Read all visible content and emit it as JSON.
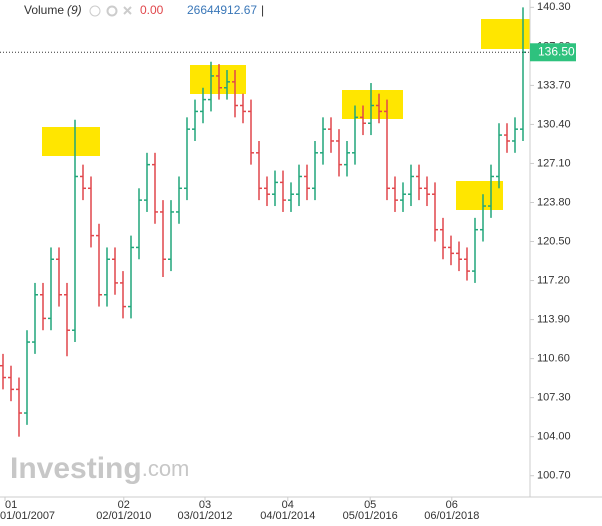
{
  "chart_data": {
    "type": "ohlc",
    "legend": {
      "name": "Volume",
      "period": "(9)",
      "change": "0.00",
      "volume": "26644912.67",
      "separator": "|"
    },
    "watermark": {
      "brand": "Investing",
      "suffix": ".com"
    },
    "up_color": "#21a67a",
    "down_color": "#e0464b",
    "open": [
      110,
      109,
      108,
      106,
      112,
      116,
      114,
      119,
      116,
      113,
      126,
      125,
      121,
      116,
      119,
      117,
      115,
      120,
      124,
      127,
      123,
      119,
      123,
      125,
      130,
      131.5,
      132.5,
      134.5,
      133.5,
      134,
      132,
      131.5,
      128,
      125,
      124.5,
      125.5,
      124,
      124.5,
      126,
      125,
      128,
      130,
      129,
      127,
      128,
      131,
      130.5,
      132,
      131.5,
      125,
      124,
      124.5,
      126,
      125,
      124.5,
      121.5,
      120,
      119.5,
      119,
      118,
      121.5,
      123.5,
      126,
      129.5,
      129,
      130
    ],
    "high": [
      111,
      110,
      109,
      113,
      117,
      117,
      120,
      120,
      117,
      130.8,
      127,
      126,
      122,
      120,
      120,
      118,
      121,
      125,
      128,
      128,
      124,
      124,
      126,
      131,
      132.5,
      133.5,
      135.7,
      135.5,
      135,
      135,
      133,
      132.5,
      129,
      126,
      126.5,
      126.5,
      125.5,
      127,
      127,
      129,
      131,
      131,
      130,
      129,
      132,
      132,
      133.9,
      133,
      132.5,
      126,
      125.5,
      127,
      127,
      126,
      125.5,
      122.5,
      121,
      120.5,
      120,
      122.5,
      124.5,
      127,
      130.5,
      130.5,
      131,
      140.3
    ],
    "low": [
      108,
      107,
      104,
      105,
      111,
      113,
      113,
      115,
      110.8,
      112,
      124,
      120,
      115,
      115,
      116,
      114,
      114,
      119,
      123,
      122,
      117.5,
      118,
      122,
      124,
      129,
      130.5,
      131.5,
      132.5,
      132.5,
      131,
      130.5,
      127,
      124,
      123.5,
      123.5,
      123,
      123,
      123.5,
      124,
      124,
      127,
      128,
      126,
      126,
      127,
      129.5,
      129.5,
      130.5,
      124,
      123,
      123,
      123.5,
      124,
      123.5,
      120.5,
      119,
      118.5,
      118,
      117.2,
      117,
      120.5,
      122.5,
      125,
      128,
      128,
      129
    ],
    "close": [
      109,
      108,
      106,
      112,
      116,
      114,
      119,
      116,
      113,
      126,
      125,
      121,
      116,
      119,
      117,
      115,
      120,
      124,
      127,
      123,
      119,
      123,
      125,
      130,
      131.5,
      132.5,
      134.5,
      133.5,
      134,
      132,
      131.5,
      128,
      125,
      124.5,
      125.5,
      124,
      124.5,
      126,
      125,
      128,
      130,
      129,
      127,
      128,
      131,
      130.5,
      132,
      131.5,
      125,
      124,
      124.5,
      126,
      125,
      124.5,
      121.5,
      120,
      119.5,
      119,
      118,
      121.5,
      123.5,
      126,
      129.5,
      129,
      130,
      136.5
    ],
    "ylim": [
      98.9,
      140.92
    ],
    "yticks": [
      {
        "value": 140.3,
        "label": "140.30"
      },
      {
        "value": 137,
        "label": "137.00"
      },
      {
        "value": 133.7,
        "label": "133.70"
      },
      {
        "value": 130.4,
        "label": "130.40"
      },
      {
        "value": 127.1,
        "label": "127.10"
      },
      {
        "value": 123.8,
        "label": "123.80"
      },
      {
        "value": 120.5,
        "label": "120.50"
      },
      {
        "value": 117.2,
        "label": "117.20"
      },
      {
        "value": 113.9,
        "label": "113.90"
      },
      {
        "value": 110.6,
        "label": "110.60"
      },
      {
        "value": 107.3,
        "label": "107.30"
      },
      {
        "value": 104,
        "label": "104.00"
      },
      {
        "value": 100.7,
        "label": "100.70"
      }
    ],
    "last_price": {
      "value": 136.5,
      "label": "136.50",
      "color": "#2ec27e"
    },
    "xticks": [
      {
        "value": 0.25,
        "label": "01"
      },
      {
        "value": 15.1,
        "label": "02"
      },
      {
        "value": 25.25,
        "label": "03"
      },
      {
        "value": 35.6,
        "label": "04"
      },
      {
        "value": 45.9,
        "label": "05"
      },
      {
        "value": 56.1,
        "label": "06"
      }
    ],
    "xtick_dates": [
      "01/01/2007",
      "02/01/2010",
      "03/01/2012",
      "04/01/2014",
      "05/01/2016",
      "06/01/2018"
    ]
  }
}
